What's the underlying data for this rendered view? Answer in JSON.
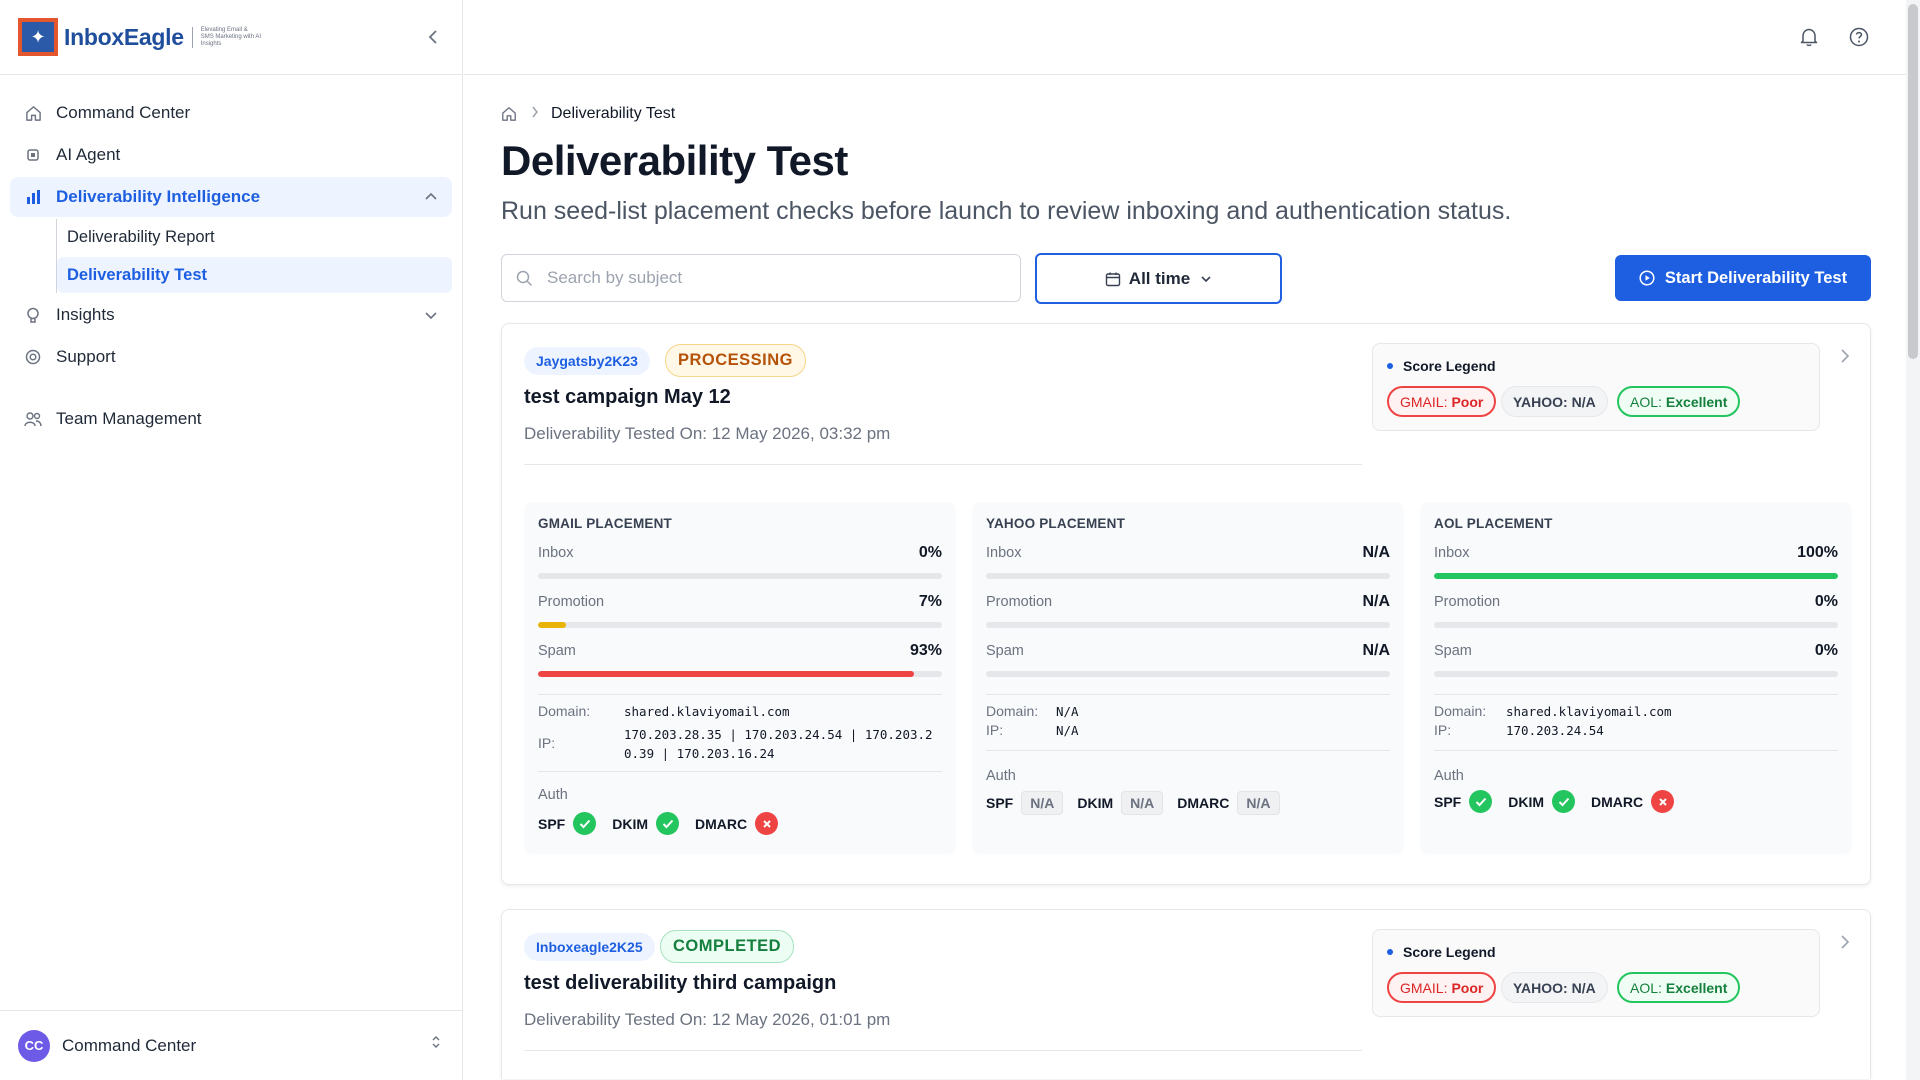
{
  "brand": {
    "name": "InboxEagle",
    "tagline": "Elevating Email & SMS Marketing with AI Insights"
  },
  "sidebar": {
    "items": [
      {
        "label": "Command Center",
        "icon": "home-icon"
      },
      {
        "label": "AI Agent",
        "icon": "chip-icon"
      },
      {
        "label": "Deliverability Intelligence",
        "icon": "bar-chart-icon"
      },
      {
        "label": "Insights",
        "icon": "lightbulb-icon"
      },
      {
        "label": "Support",
        "icon": "lifebuoy-icon"
      },
      {
        "label": "Team Management",
        "icon": "users-icon"
      }
    ],
    "subitems": [
      {
        "label": "Deliverability Report"
      },
      {
        "label": "Deliverability Test"
      }
    ],
    "footer": {
      "avatar": "CC",
      "label": "Command Center"
    }
  },
  "breadcrumb": {
    "current": "Deliverability Test"
  },
  "page": {
    "title": "Deliverability Test",
    "subtitle": "Run seed-list placement checks before launch to review inboxing and authentication status."
  },
  "filters": {
    "search_placeholder": "Search by subject",
    "date_range": "All time",
    "start_button": "Start Deliverability Test"
  },
  "legend": {
    "title": "Score Legend",
    "gmail_prefix": "GMAIL:",
    "gmail_value": "Poor",
    "yahoo": "YAHOO: N/A",
    "aol_prefix": "AOL:",
    "aol_value": "Excellent"
  },
  "labels": {
    "inbox": "Inbox",
    "promotion": "Promotion",
    "spam": "Spam",
    "domain": "Domain:",
    "ip": "IP:",
    "auth": "Auth",
    "spf": "SPF",
    "dkim": "DKIM",
    "dmarc": "DMARC",
    "na": "N/A"
  },
  "colors": {
    "accent": "#1d5fe0",
    "good": "#22c55e",
    "bad": "#ef4444",
    "warn": "#eab308"
  },
  "tests": [
    {
      "user": "Jaygatsby2K23",
      "status": "PROCESSING",
      "title": "test campaign May 12",
      "tested_on": "Deliverability Tested On: 12 May 2026, 03:32 pm",
      "gmail": {
        "title": "GMAIL PLACEMENT",
        "inbox": "0%",
        "inbox_pct": 0,
        "promotion": "7%",
        "promotion_pct": 7,
        "spam": "93%",
        "spam_pct": 93,
        "domain": "shared.klaviyomail.com",
        "ip_line1": "170.203.28.35 | 170.203.24.54 | 170.203.2",
        "ip_line2": "0.39 | 170.203.16.24",
        "spf": "pass",
        "dkim": "pass",
        "dmarc": "fail"
      },
      "yahoo": {
        "title": "YAHOO PLACEMENT",
        "inbox": "N/A",
        "promotion": "N/A",
        "spam": "N/A",
        "domain": "N/A",
        "ip": "N/A"
      },
      "aol": {
        "title": "AOL PLACEMENT",
        "inbox": "100%",
        "inbox_pct": 100,
        "promotion": "0%",
        "promotion_pct": 0,
        "spam": "0%",
        "spam_pct": 0,
        "domain": "shared.klaviyomail.com",
        "ip": "170.203.24.54",
        "spf": "pass",
        "dkim": "pass",
        "dmarc": "fail"
      }
    },
    {
      "user": "Inboxeagle2K25",
      "status": "COMPLETED",
      "title": "test deliverability third campaign",
      "tested_on": "Deliverability Tested On: 12 May 2026, 01:01 pm"
    }
  ]
}
